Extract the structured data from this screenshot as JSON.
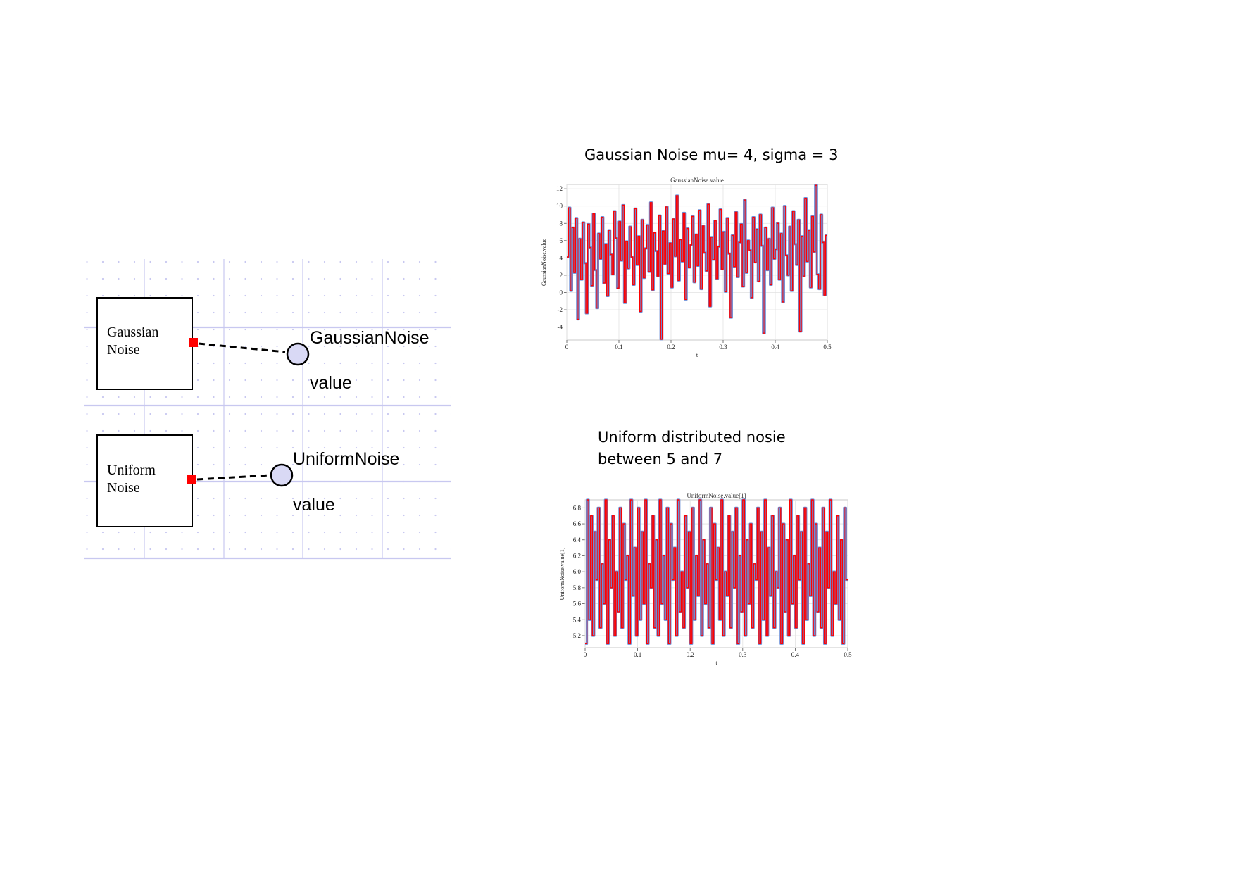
{
  "diagram": {
    "blocks": [
      {
        "id": "gaussian",
        "line1": "Gaussian",
        "line2": "Noise"
      },
      {
        "id": "uniform",
        "line1": "Uniform",
        "line2": "Noise"
      }
    ],
    "probes": [
      {
        "id": "gaussian-probe",
        "name": "GaussianNoise",
        "port": "value"
      },
      {
        "id": "uniform-probe",
        "name": "UniformNoise",
        "port": "value"
      }
    ],
    "colors": {
      "port": "#ff0000",
      "probe_fill": "#d9d9f5",
      "grid": "#c8c8f0",
      "line": "#000000"
    }
  },
  "captions": {
    "gaussian": "Gaussian Noise mu= 4, sigma = 3",
    "uniform_line1": "Uniform distributed nosie",
    "uniform_line2": "between 5 and 7"
  },
  "chart_data": [
    {
      "type": "line",
      "title": "GaussianNoise.value",
      "xlabel": "t",
      "ylabel": "GaussianNoise.value",
      "xlim": [
        0,
        0.5
      ],
      "ylim": [
        -5.5,
        12.5
      ],
      "xticks": [
        "0",
        "0.1",
        "0.2",
        "0.3",
        "0.4",
        "0.5"
      ],
      "yticks": [
        "-4",
        "-2",
        "0",
        "2",
        "4",
        "6",
        "8",
        "10",
        "12"
      ],
      "grid": true,
      "colors": {
        "series": "#ff0000",
        "outline": "#6b8fd8"
      },
      "series": [
        {
          "name": "",
          "values": [
            4.1,
            9.8,
            0.2,
            7.5,
            2.3,
            8.6,
            -3.1,
            6.2,
            1.5,
            8.1,
            3.4,
            -2.4,
            7.9,
            5.2,
            0.8,
            9.1,
            2.6,
            -1.8,
            6.8,
            3.9,
            8.7,
            1.1,
            5.6,
            -0.4,
            7.2,
            4.4,
            2.1,
            9.4,
            6.3,
            0.5,
            8.2,
            3.7,
            10.1,
            -1.2,
            5.9,
            2.8,
            7.6,
            4.1,
            0.9,
            9.7,
            3.2,
            6.5,
            -2.2,
            8.4,
            1.7,
            5.1,
            7.8,
            2.4,
            10.4,
            0.3,
            6.9,
            4.8,
            1.9,
            8.9,
            -5.4,
            7.1,
            3.3,
            9.9,
            2.2,
            5.7,
            0.6,
            8.5,
            4.2,
            11.2,
            1.4,
            6.1,
            3.6,
            9.2,
            -0.8,
            7.4,
            2.9,
            5.5,
            8.8,
            1.2,
            6.7,
            3.1,
            9.5,
            0.4,
            7.7,
            4.6,
            2.5,
            10.2,
            -1.6,
            6.4,
            3.8,
            8.3,
            1.6,
            5.3,
            9.6,
            2.7,
            7.0,
            0.1,
            8.6,
            4.5,
            -2.9,
            6.6,
            3.0,
            9.3,
            1.8,
            5.8,
            7.9,
            0.7,
            10.7,
            2.3,
            6.0,
            4.9,
            -0.6,
            8.7,
            3.5,
            7.3,
            1.3,
            9.0,
            5.4,
            -4.7,
            7.5,
            2.6,
            6.2,
            0.9,
            9.8,
            3.9,
            5.0,
            8.0,
            1.5,
            6.8,
            -1.1,
            10.0,
            4.3,
            2.0,
            7.6,
            0.2,
            9.4,
            5.6,
            3.2,
            8.4,
            -4.5,
            6.5,
            1.9,
            10.9,
            3.6,
            7.2,
            0.6,
            8.8,
            4.7,
            12.4,
            2.1,
            0.4,
            9.0,
            5.8,
            -0.3,
            6.6
          ]
        }
      ]
    },
    {
      "type": "line",
      "title": "UniformNoise.value[1]",
      "xlabel": "t",
      "ylabel": "UniformNoise.value[1]",
      "xlim": [
        0,
        0.5
      ],
      "ylim": [
        5.05,
        6.9
      ],
      "xticks": [
        "0",
        "0.1",
        "0.2",
        "0.3",
        "0.4",
        "0.5"
      ],
      "yticks": [
        "5.2",
        "5.4",
        "5.6",
        "5.8",
        "6.0",
        "6.2",
        "6.4",
        "6.6",
        "6.8"
      ],
      "grid": true,
      "colors": {
        "series": "#ff0000",
        "outline": "#6b8fd8"
      },
      "series": [
        {
          "name": "",
          "values": [
            5.1,
            6.9,
            5.4,
            6.7,
            5.2,
            6.5,
            5.9,
            6.8,
            5.3,
            6.1,
            5.6,
            6.9,
            5.1,
            6.4,
            5.8,
            6.7,
            5.2,
            6.0,
            5.5,
            6.8,
            5.3,
            6.6,
            5.9,
            6.2,
            5.1,
            6.9,
            5.7,
            6.3,
            5.2,
            6.8,
            5.4,
            6.5,
            5.6,
            6.9,
            5.1,
            6.1,
            5.8,
            6.7,
            5.3,
            6.4,
            5.2,
            6.9,
            5.6,
            6.2,
            5.4,
            6.8,
            5.1,
            6.6,
            5.9,
            6.3,
            5.2,
            6.9,
            5.5,
            6.0,
            5.3,
            6.7,
            5.8,
            6.5,
            5.1,
            6.8,
            5.4,
            6.2,
            5.7,
            6.9,
            5.2,
            6.4,
            5.6,
            6.1,
            5.3,
            6.8,
            5.1,
            6.6,
            5.9,
            6.3,
            5.4,
            6.9,
            5.2,
            6.0,
            5.7,
            6.7,
            5.3,
            6.5,
            5.8,
            6.8,
            5.1,
            6.2,
            5.5,
            6.9,
            5.2,
            6.4,
            5.6,
            6.6,
            5.3,
            6.1,
            5.9,
            6.8,
            5.1,
            6.5,
            5.4,
            6.9,
            5.2,
            6.3,
            5.7,
            6.7,
            5.3,
            6.0,
            5.8,
            6.8,
            5.1,
            6.6,
            5.5,
            6.4,
            5.2,
            6.9,
            5.6,
            6.2,
            5.3,
            6.7,
            5.9,
            6.5,
            5.1,
            6.8,
            5.4,
            6.1,
            5.7,
            6.9,
            5.2,
            6.6,
            5.5,
            6.3,
            5.3,
            6.8,
            5.1,
            6.5,
            5.8,
            6.9,
            5.2,
            6.0,
            5.6,
            6.7,
            5.4,
            6.4,
            5.1,
            6.8,
            5.9
          ]
        }
      ]
    }
  ]
}
